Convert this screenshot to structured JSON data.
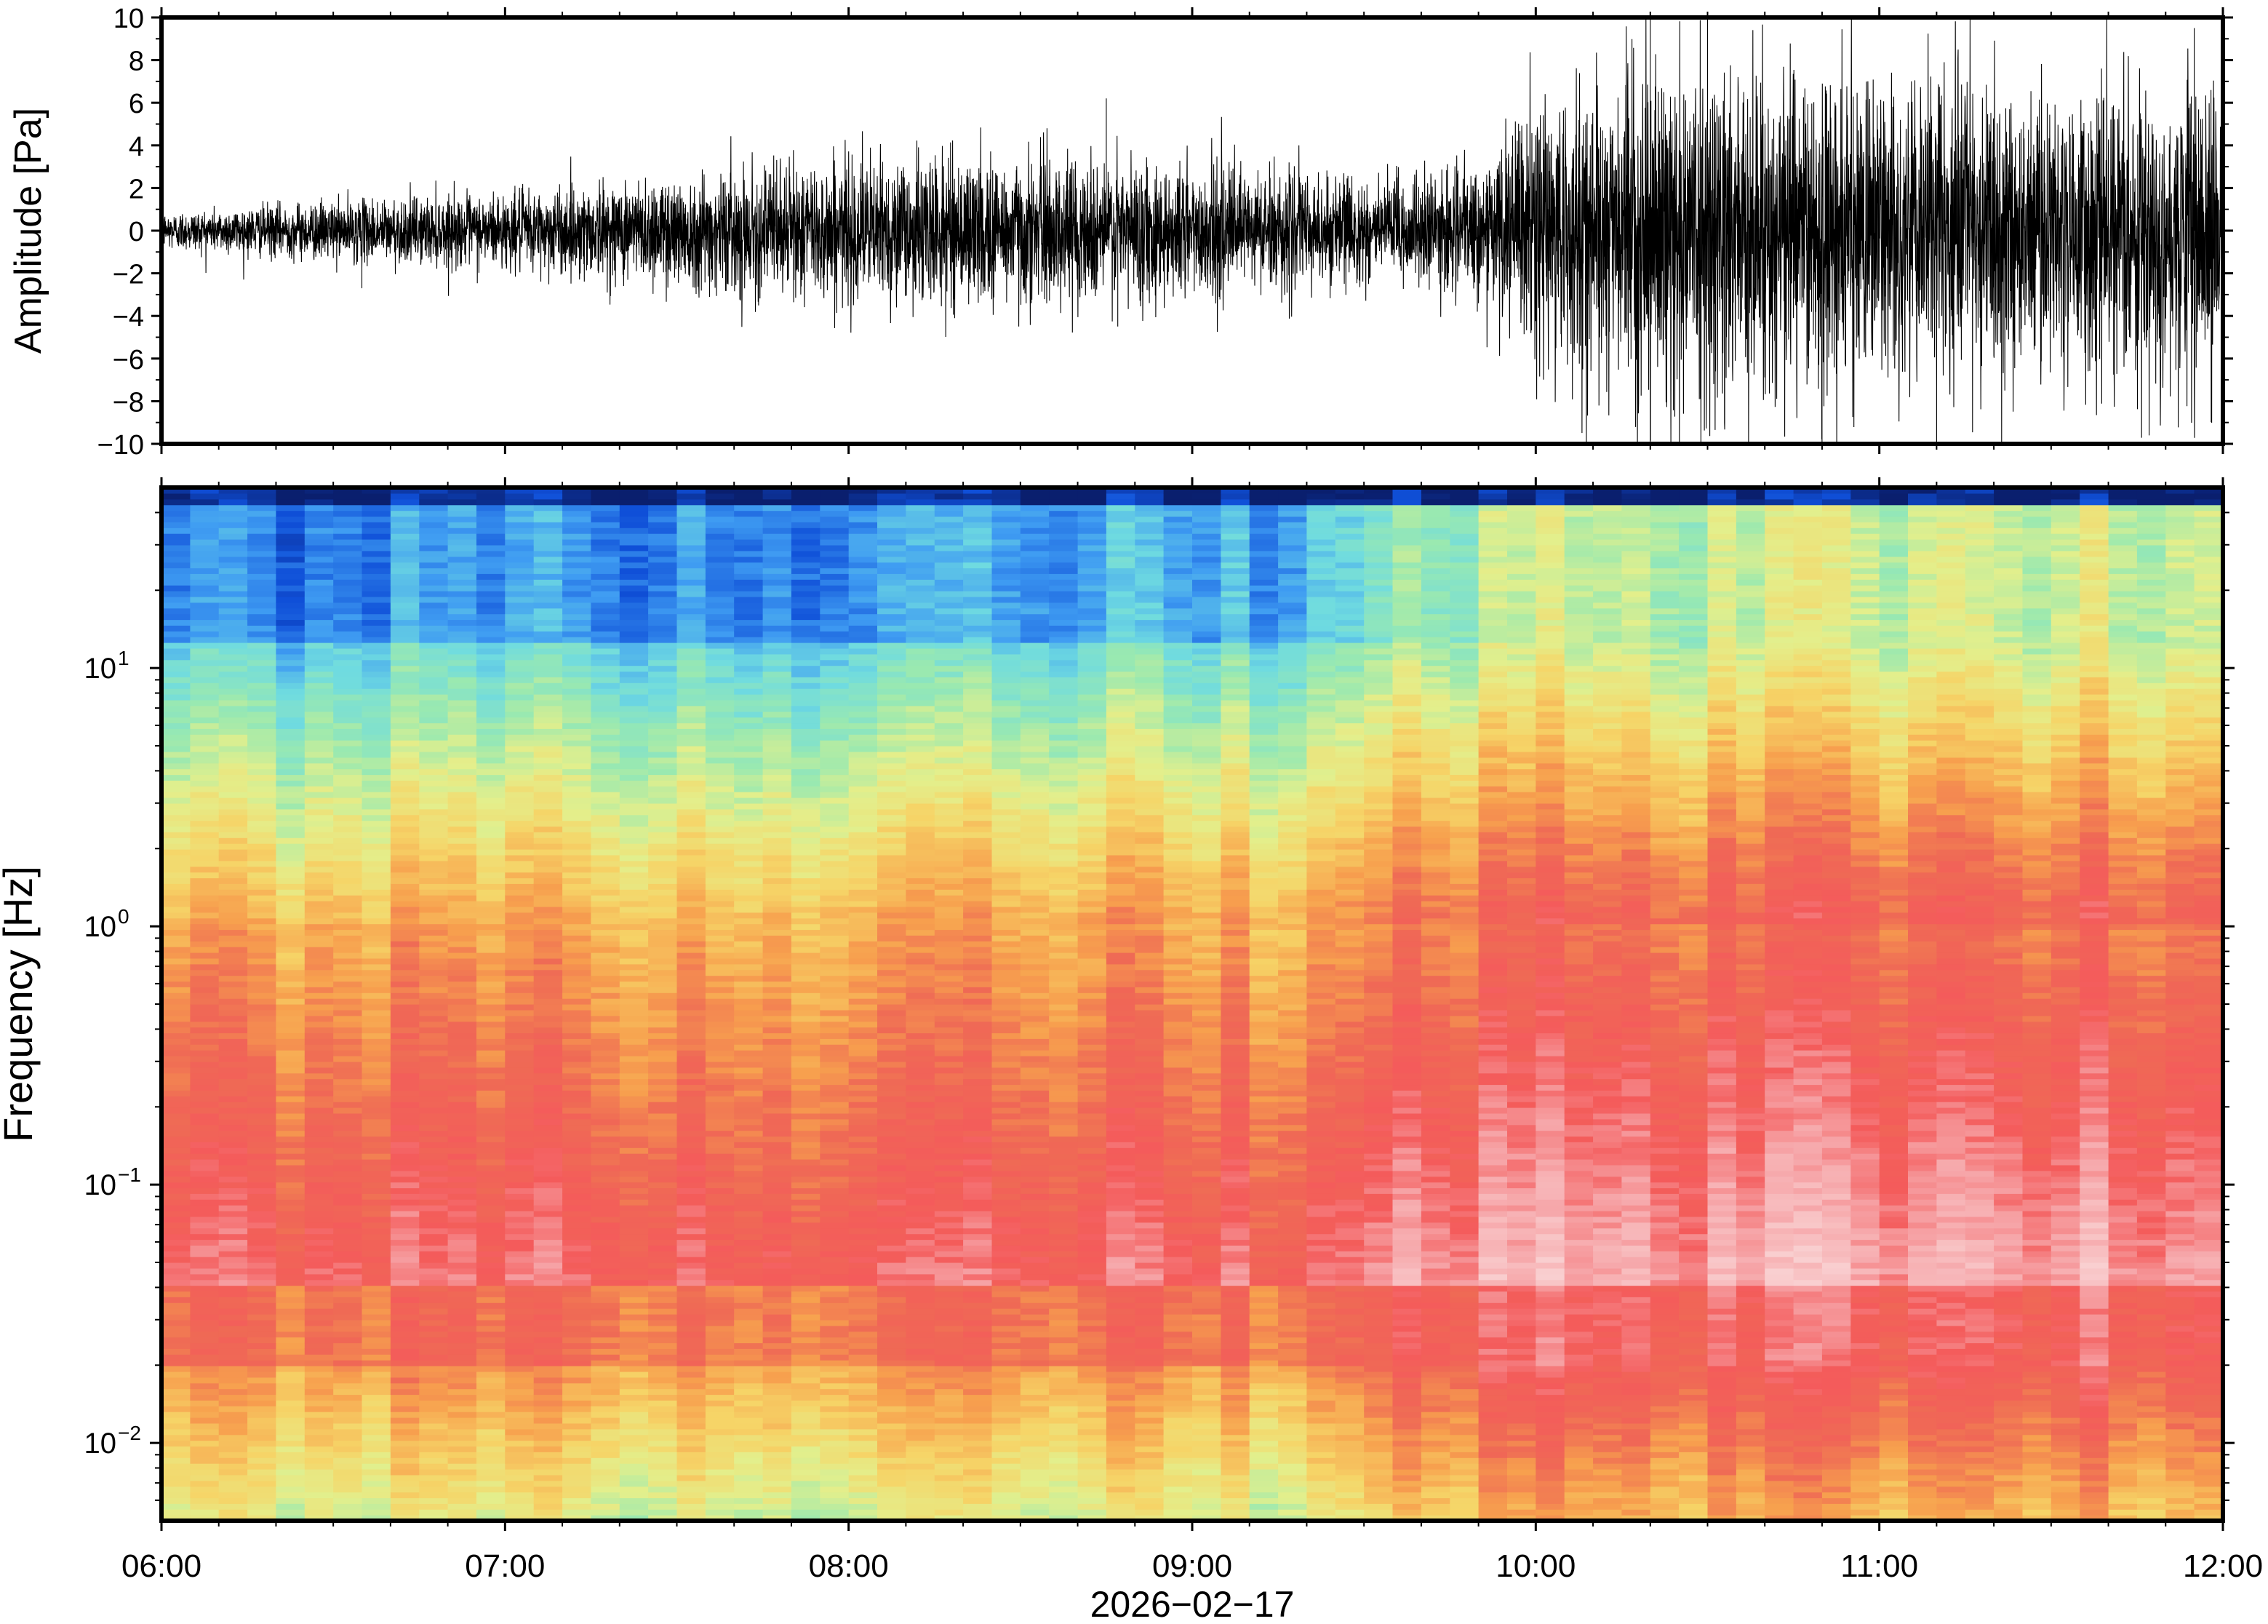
{
  "chart_data": [
    {
      "panel": "waveform",
      "type": "line",
      "ylabel": "Amplitude [Pa]",
      "ylim": [
        -10,
        10
      ],
      "yticks": [
        -10,
        -8,
        -6,
        -4,
        -2,
        0,
        2,
        4,
        6,
        8,
        10
      ],
      "ytick_labels": [
        "−10",
        "−8",
        "−6",
        "−4",
        "−2",
        "0",
        "2",
        "4",
        "6",
        "8",
        "10"
      ],
      "xlim": [
        "06:00",
        "12:00"
      ],
      "grid": false,
      "line_color": "#000000",
      "envelope": {
        "description_hours": [
          "06:00",
          "06:30",
          "07:00",
          "07:30",
          "08:00",
          "08:30",
          "09:00",
          "09:30",
          "09:50",
          "10:00",
          "10:30",
          "11:00",
          "11:30",
          "12:00"
        ],
        "amplitude_pa": [
          0.5,
          0.8,
          1.0,
          1.5,
          1.9,
          2.0,
          1.8,
          1.4,
          1.6,
          3.5,
          4.5,
          4.0,
          3.8,
          3.9
        ]
      },
      "notable_spikes": [
        {
          "time": "06:35",
          "value": -2.7
        },
        {
          "time": "08:45",
          "value": 6.2
        },
        {
          "time": "08:47",
          "value": -4.5
        },
        {
          "time": "10:20",
          "value": 10
        },
        {
          "time": "10:20",
          "value": -10
        },
        {
          "time": "10:30",
          "value": 10
        },
        {
          "time": "10:50",
          "value": -10
        },
        {
          "time": "11:10",
          "value": -10
        },
        {
          "time": "11:55",
          "value": 9.5
        }
      ]
    },
    {
      "panel": "spectrogram",
      "type": "heatmap",
      "ylabel": "Frequency [Hz]",
      "yscale": "log",
      "ylim": [
        0.005,
        50
      ],
      "yticks": [
        0.01,
        0.1,
        1,
        10
      ],
      "ytick_labels": [
        {
          "base": "10",
          "exp": "−2"
        },
        {
          "base": "10",
          "exp": "−1"
        },
        {
          "base": "10",
          "exp": "0"
        },
        {
          "base": "10",
          "exp": "1"
        }
      ],
      "xlim": [
        "06:00",
        "12:00"
      ],
      "xticks": [
        "06:00",
        "07:00",
        "08:00",
        "09:00",
        "10:00",
        "11:00",
        "12:00"
      ],
      "xlabel": "2026−02−17",
      "colormap": [
        "#0a1f6e",
        "#0f4fd8",
        "#3f9cf2",
        "#6fdbe0",
        "#9ae9b0",
        "#e3ef8c",
        "#f6d467",
        "#f7a04e",
        "#ef6a55",
        "#f45b5b",
        "#f6a5a8",
        "#f9cfd0"
      ],
      "column_minutes": 5,
      "description": "power level (0 = low/blue, 1 = high/pink) per time column and frequency",
      "transition_time": "09:50"
    }
  ]
}
